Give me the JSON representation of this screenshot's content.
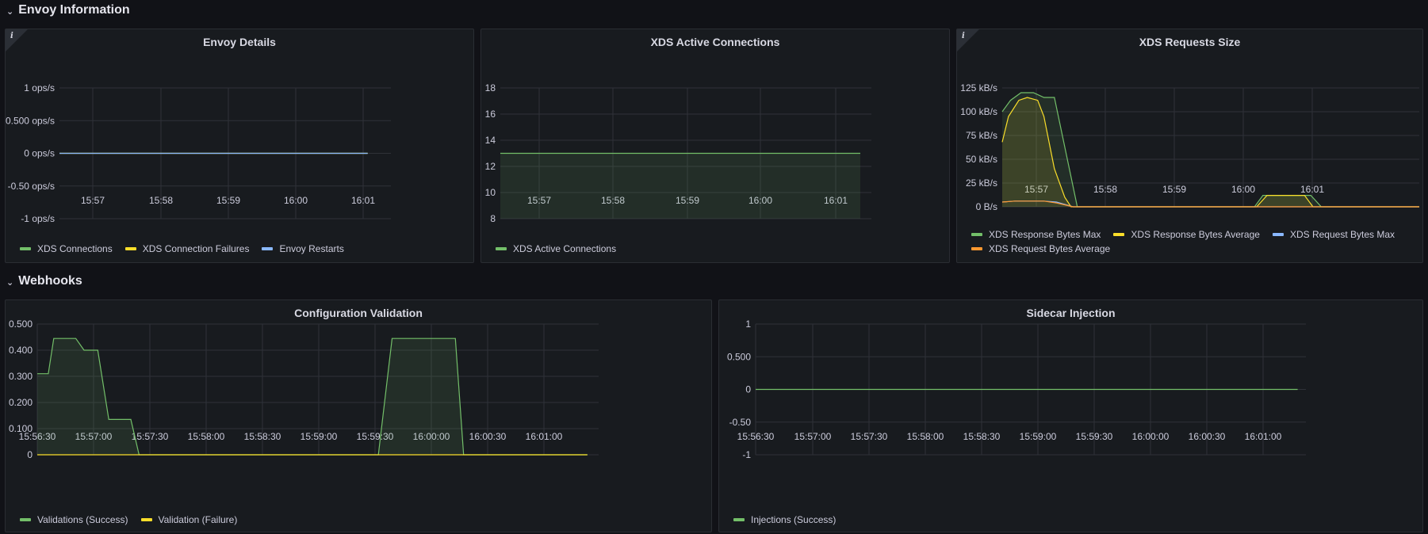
{
  "rows": [
    {
      "title": "Envoy Information"
    },
    {
      "title": "Webhooks"
    }
  ],
  "colors": {
    "green": "#73bf69",
    "yellow": "#fade2a",
    "blue": "#8ab8ff",
    "orange": "#ff9830",
    "grid": "#2f3238"
  },
  "panels": [
    {
      "title": "Envoy Details",
      "has_info": true,
      "legend": [
        {
          "label": "XDS Connections",
          "color": "#73bf69"
        },
        {
          "label": "XDS Connection Failures",
          "color": "#fade2a"
        },
        {
          "label": "Envoy Restarts",
          "color": "#8ab8ff"
        }
      ],
      "chart_data": {
        "type": "line",
        "title": "Envoy Details",
        "x_ticks": [
          "15:57",
          "15:58",
          "15:59",
          "16:00",
          "16:01"
        ],
        "y_ticks": [
          "1 ops/s",
          "0.500 ops/s",
          "0 ops/s",
          "-0.50 ops/s",
          "-1 ops/s"
        ],
        "ylim": [
          -1,
          1
        ],
        "series": [
          {
            "name": "XDS Connections",
            "color": "#73bf69",
            "x": [
              0,
              1
            ],
            "y": [
              0,
              0
            ]
          },
          {
            "name": "XDS Connection Failures",
            "color": "#fade2a",
            "x": [
              0,
              1
            ],
            "y": [
              0,
              0
            ]
          },
          {
            "name": "Envoy Restarts",
            "color": "#8ab8ff",
            "x": [
              0,
              1
            ],
            "y": [
              0,
              0
            ]
          }
        ]
      }
    },
    {
      "title": "XDS Active Connections",
      "has_info": false,
      "legend": [
        {
          "label": "XDS Active Connections",
          "color": "#73bf69"
        }
      ],
      "chart_data": {
        "type": "area",
        "title": "XDS Active Connections",
        "x_ticks": [
          "15:57",
          "15:58",
          "15:59",
          "16:00",
          "16:01"
        ],
        "y_ticks": [
          "18",
          "16",
          "14",
          "12",
          "10",
          "8"
        ],
        "ylim": [
          8,
          18
        ],
        "series": [
          {
            "name": "XDS Active Connections",
            "color": "#73bf69",
            "x": [
              0,
              1
            ],
            "y": [
              13,
              13
            ],
            "fill": true
          }
        ]
      }
    },
    {
      "title": "XDS Requests Size",
      "has_info": true,
      "legend": [
        {
          "label": "XDS Response Bytes Max",
          "color": "#73bf69"
        },
        {
          "label": "XDS Response Bytes Average",
          "color": "#fade2a"
        },
        {
          "label": "XDS Request Bytes Max",
          "color": "#8ab8ff"
        },
        {
          "label": "XDS Request Bytes Average",
          "color": "#ff9830"
        }
      ],
      "chart_data": {
        "type": "area",
        "title": "XDS Requests Size",
        "x_ticks": [
          "15:57",
          "15:58",
          "15:59",
          "16:00",
          "16:01"
        ],
        "y_ticks": [
          "125 kB/s",
          "100 kB/s",
          "75 kB/s",
          "50 kB/s",
          "25 kB/s",
          "0 B/s"
        ],
        "ylim": [
          0,
          125
        ],
        "series": [
          {
            "name": "XDS Response Bytes Max",
            "color": "#73bf69",
            "fill": true,
            "x": [
              0,
              0.02,
              0.045,
              0.075,
              0.1,
              0.125,
              0.18,
              0.6,
              0.605,
              0.625,
              0.74,
              0.765,
              0.77,
              1
            ],
            "y": [
              100,
              112,
              120,
              120,
              115,
              115,
              0,
              0,
              0,
              12,
              12,
              0,
              0,
              0
            ]
          },
          {
            "name": "XDS Response Bytes Average",
            "color": "#fade2a",
            "fill": true,
            "x": [
              0,
              0.015,
              0.04,
              0.06,
              0.085,
              0.1,
              0.125,
              0.15,
              0.165,
              0.6,
              0.61,
              0.635,
              0.725,
              0.745,
              0.75,
              1
            ],
            "y": [
              68,
              95,
              112,
              115,
              112,
              95,
              40,
              10,
              0,
              0,
              0,
              12,
              12,
              0,
              0,
              0
            ]
          },
          {
            "name": "XDS Request Bytes Max",
            "color": "#8ab8ff",
            "fill": false,
            "x": [
              0,
              0.03,
              0.1,
              0.13,
              0.17,
              1
            ],
            "y": [
              5,
              6,
              6,
              5,
              0,
              0
            ]
          },
          {
            "name": "XDS Request Bytes Average",
            "color": "#ff9830",
            "fill": false,
            "x": [
              0,
              0.03,
              0.1,
              0.13,
              0.17,
              1
            ],
            "y": [
              5,
              6,
              6,
              4,
              0,
              0
            ]
          }
        ]
      }
    },
    {
      "title": "Configuration Validation",
      "has_info": false,
      "legend": [
        {
          "label": "Validations (Success)",
          "color": "#73bf69"
        },
        {
          "label": "Validation (Failure)",
          "color": "#fade2a"
        }
      ],
      "chart_data": {
        "type": "area",
        "title": "Configuration Validation",
        "x_ticks": [
          "15:56:30",
          "15:57:00",
          "15:57:30",
          "15:58:00",
          "15:58:30",
          "15:59:00",
          "15:59:30",
          "16:00:00",
          "16:00:30",
          "16:01:00"
        ],
        "y_ticks": [
          "0.500",
          "0.400",
          "0.300",
          "0.200",
          "0.100",
          "0"
        ],
        "ylim": [
          0,
          0.5
        ],
        "series": [
          {
            "name": "Validations (Success)",
            "color": "#73bf69",
            "fill": true,
            "x": [
              0,
              0.02,
              0.03,
              0.07,
              0.085,
              0.11,
              0.13,
              0.17,
              0.185,
              0.62,
              0.645,
              0.76,
              0.775,
              1
            ],
            "y": [
              0.31,
              0.31,
              0.445,
              0.445,
              0.4,
              0.4,
              0.135,
              0.135,
              0,
              0,
              0.445,
              0.445,
              0,
              0
            ]
          },
          {
            "name": "Validation (Failure)",
            "color": "#fade2a",
            "fill": false,
            "x": [
              0,
              1
            ],
            "y": [
              0,
              0
            ]
          }
        ]
      }
    },
    {
      "title": "Sidecar Injection",
      "has_info": false,
      "legend": [
        {
          "label": "Injections (Success)",
          "color": "#73bf69"
        }
      ],
      "chart_data": {
        "type": "line",
        "title": "Sidecar Injection",
        "x_ticks": [
          "15:56:30",
          "15:57:00",
          "15:57:30",
          "15:58:00",
          "15:58:30",
          "15:59:00",
          "15:59:30",
          "16:00:00",
          "16:00:30",
          "16:01:00"
        ],
        "y_ticks": [
          "1",
          "0.500",
          "0",
          "-0.50",
          "-1"
        ],
        "ylim": [
          -1,
          1
        ],
        "series": [
          {
            "name": "Injections (Success)",
            "color": "#73bf69",
            "fill": false,
            "x": [
              0,
              1
            ],
            "y": [
              0,
              0
            ]
          }
        ]
      }
    }
  ]
}
